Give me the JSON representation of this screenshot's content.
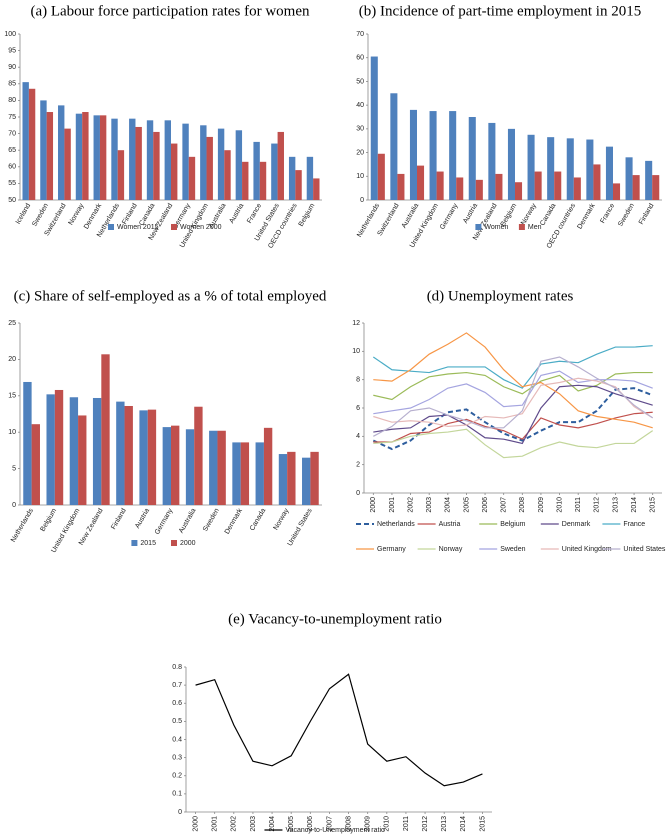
{
  "chart_data": [
    {
      "type": "bar",
      "title": "(a) Labour force participation rates for women",
      "categories": [
        "Iceland",
        "Sweden",
        "Switzerland",
        "Norway",
        "Denmark",
        "Netherlands",
        "Finland",
        "Canada",
        "New Zealand",
        "Germany",
        "United Kingdom",
        "Australia",
        "Austria",
        "France",
        "United States",
        "OECD countries",
        "Belgium"
      ],
      "series": [
        {
          "name": "Women 2015",
          "color": "#4f81bd",
          "values": [
            85.5,
            80,
            78.5,
            76,
            75.5,
            74.5,
            74.5,
            74,
            74,
            73,
            72.5,
            71.5,
            71,
            67.5,
            67,
            63,
            63
          ]
        },
        {
          "name": "Women 2000",
          "color": "#c0504d",
          "values": [
            83.5,
            76.5,
            71.5,
            76.5,
            75.5,
            65,
            72,
            70.5,
            67,
            63,
            69,
            65,
            61.5,
            61.5,
            70.5,
            59,
            56.5
          ]
        }
      ],
      "ylim": [
        50,
        100
      ],
      "yticks": [
        50,
        55,
        60,
        65,
        70,
        75,
        80,
        85,
        90,
        95,
        100
      ]
    },
    {
      "type": "bar",
      "title": "(b) Incidence of part-time employment in 2015",
      "categories": [
        "Netherlands",
        "Switzerland",
        "Australia",
        "United Kingdom",
        "Germany",
        "Austria",
        "New Zealand",
        "Belgium",
        "Norway",
        "Canada",
        "OECD countries",
        "Denmark",
        "France",
        "Sweden",
        "Finland"
      ],
      "series": [
        {
          "name": "Women",
          "color": "#4f81bd",
          "values": [
            60.5,
            45,
            38,
            37.5,
            37.5,
            35,
            32.5,
            30,
            27.5,
            26.5,
            26,
            25.5,
            22.5,
            18,
            16.5
          ]
        },
        {
          "name": "Men",
          "color": "#c0504d",
          "values": [
            19.5,
            11,
            14.5,
            12,
            9.5,
            8.5,
            11,
            7.5,
            12,
            12,
            9.5,
            15,
            7,
            10.5,
            10.5
          ]
        }
      ],
      "ylim": [
        0,
        70
      ],
      "yticks": [
        0,
        10,
        20,
        30,
        40,
        50,
        60,
        70
      ]
    },
    {
      "type": "bar",
      "title": "(c) Share of self-employed as a % of total employed",
      "categories": [
        "Netherlands",
        "Belgium",
        "United Kingdom",
        "New Zealand",
        "Finland",
        "Austria",
        "Germany",
        "Australia",
        "Sweden",
        "Denmark",
        "Canada",
        "Norway",
        "United States"
      ],
      "series": [
        {
          "name": "2015",
          "color": "#4f81bd",
          "values": [
            16.9,
            15.2,
            14.8,
            14.7,
            14.2,
            13,
            10.7,
            10.4,
            10.2,
            8.6,
            8.6,
            7,
            6.5
          ]
        },
        {
          "name": "2000",
          "color": "#c0504d",
          "values": [
            11.1,
            15.8,
            12.3,
            20.7,
            13.6,
            13.1,
            10.9,
            13.5,
            10.2,
            8.6,
            10.6,
            7.3,
            7.3
          ]
        }
      ],
      "ylim": [
        0,
        25
      ],
      "yticks": [
        0,
        5,
        10,
        15,
        20,
        25
      ]
    },
    {
      "type": "line",
      "title": "(d) Unemployment rates",
      "x": [
        2000,
        2001,
        2002,
        2003,
        2004,
        2005,
        2006,
        2007,
        2008,
        2009,
        2010,
        2011,
        2012,
        2013,
        2014,
        2015
      ],
      "series": [
        {
          "name": "Netherlands",
          "color": "#2e5e9e",
          "dashed": true,
          "values": [
            3.7,
            3.1,
            3.7,
            4.8,
            5.7,
            5.9,
            5.0,
            4.2,
            3.7,
            4.4,
            5.0,
            5.0,
            5.8,
            7.3,
            7.4,
            6.9
          ]
        },
        {
          "name": "Austria",
          "color": "#c0504d",
          "values": [
            3.6,
            3.6,
            4.2,
            4.3,
            4.9,
            5.2,
            4.7,
            4.4,
            3.8,
            5.3,
            4.8,
            4.6,
            4.9,
            5.3,
            5.6,
            5.7
          ]
        },
        {
          "name": "Belgium",
          "color": "#9bbb59",
          "values": [
            6.9,
            6.6,
            7.5,
            8.2,
            8.4,
            8.5,
            8.3,
            7.5,
            7.0,
            7.9,
            8.3,
            7.2,
            7.6,
            8.4,
            8.5,
            8.5
          ]
        },
        {
          "name": "Denmark",
          "color": "#5f4b8b",
          "values": [
            4.3,
            4.5,
            4.6,
            5.4,
            5.5,
            4.8,
            3.9,
            3.8,
            3.5,
            6.0,
            7.5,
            7.6,
            7.5,
            7.0,
            6.6,
            6.2
          ]
        },
        {
          "name": "France",
          "color": "#4bacc6",
          "values": [
            9.6,
            8.7,
            8.6,
            8.5,
            8.9,
            8.9,
            8.9,
            8.0,
            7.4,
            9.1,
            9.3,
            9.2,
            9.8,
            10.3,
            10.3,
            10.4
          ]
        },
        {
          "name": "Germany",
          "color": "#f79646",
          "values": [
            8.0,
            7.9,
            8.7,
            9.8,
            10.5,
            11.3,
            10.3,
            8.7,
            7.5,
            7.8,
            7.0,
            5.8,
            5.4,
            5.2,
            5.0,
            4.6
          ]
        },
        {
          "name": "Norway",
          "color": "#c3d69b",
          "values": [
            3.5,
            3.6,
            4.0,
            4.2,
            4.3,
            4.5,
            3.4,
            2.5,
            2.6,
            3.2,
            3.6,
            3.3,
            3.2,
            3.5,
            3.5,
            4.4
          ]
        },
        {
          "name": "Sweden",
          "color": "#a5a5e0",
          "values": [
            5.6,
            5.8,
            6.0,
            6.6,
            7.4,
            7.7,
            7.1,
            6.1,
            6.2,
            8.3,
            8.6,
            7.8,
            8.0,
            8.0,
            7.9,
            7.4
          ]
        },
        {
          "name": "United Kingdom",
          "color": "#e6b9b8",
          "values": [
            5.4,
            5.0,
            5.1,
            5.0,
            4.7,
            4.8,
            5.4,
            5.3,
            5.6,
            7.6,
            7.8,
            8.1,
            7.9,
            7.5,
            6.1,
            5.3
          ]
        },
        {
          "name": "United States",
          "color": "#b7b0cf",
          "values": [
            4.0,
            4.7,
            5.8,
            6.0,
            5.5,
            5.1,
            4.6,
            4.6,
            5.8,
            9.3,
            9.6,
            8.9,
            8.1,
            7.4,
            6.2,
            5.3
          ]
        }
      ],
      "ylim": [
        0,
        12
      ],
      "yticks": [
        0,
        2,
        4,
        6,
        8,
        10,
        12
      ]
    },
    {
      "type": "line",
      "title": "(e) Vacancy-to-unemployment ratio",
      "x": [
        2000,
        2001,
        2002,
        2003,
        2004,
        2005,
        2006,
        2007,
        2008,
        2009,
        2010,
        2011,
        2012,
        2013,
        2014,
        2015
      ],
      "series": [
        {
          "name": "Vacancy-to-Unemployment ratio",
          "color": "#000000",
          "values": [
            0.7,
            0.73,
            0.48,
            0.28,
            0.255,
            0.31,
            0.5,
            0.68,
            0.76,
            0.375,
            0.28,
            0.305,
            0.215,
            0.145,
            0.165,
            0.21
          ]
        }
      ],
      "ylim": [
        0,
        0.8
      ],
      "yticks": [
        0,
        0.1,
        0.2,
        0.3,
        0.4,
        0.5,
        0.6,
        0.7,
        0.8
      ]
    }
  ]
}
